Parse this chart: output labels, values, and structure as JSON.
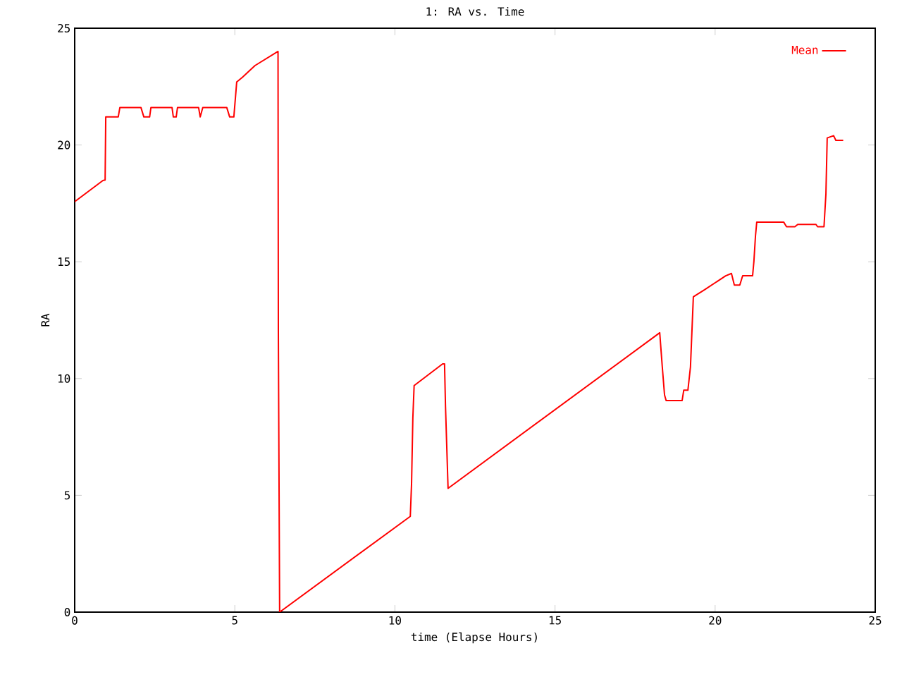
{
  "chart_data": {
    "type": "line",
    "title": "1: RA vs. Time",
    "xlabel": "time (Elapse Hours)",
    "ylabel": "RA",
    "xlim": [
      0,
      25
    ],
    "ylim": [
      0,
      25
    ],
    "xticks": [
      0,
      5,
      10,
      15,
      20,
      25
    ],
    "yticks": [
      0,
      5,
      10,
      15,
      20,
      25
    ],
    "grid": false,
    "legend": "top right",
    "marker": "none",
    "line_style": "solid",
    "series": [
      {
        "name": "Mean",
        "color": "#ff0000",
        "x": [
          0,
          0.88,
          0.95,
          0.97,
          1.36,
          1.41,
          2.07,
          2.16,
          2.34,
          2.38,
          3.04,
          3.08,
          3.17,
          3.21,
          3.87,
          3.92,
          4.0,
          4.75,
          4.84,
          4.97,
          5.06,
          5.24,
          5.63,
          6.34,
          6.35,
          6.36,
          6.4,
          10.48,
          10.52,
          10.56,
          10.6,
          11.49,
          11.55,
          11.58,
          11.66,
          18.27,
          18.35,
          18.42,
          18.47,
          18.97,
          19.02,
          19.15,
          19.23,
          19.32,
          19.67,
          20.33,
          20.51,
          20.6,
          20.77,
          20.86,
          21.17,
          21.21,
          21.26,
          21.3,
          22.14,
          22.23,
          22.49,
          22.58,
          23.15,
          23.2,
          23.4,
          23.46,
          23.5,
          23.7,
          23.77,
          24.0
        ],
        "values": [
          17.57,
          18.48,
          18.5,
          21.2,
          21.2,
          21.6,
          21.6,
          21.2,
          21.2,
          21.6,
          21.6,
          21.2,
          21.2,
          21.6,
          21.6,
          21.2,
          21.6,
          21.6,
          21.2,
          21.2,
          22.7,
          22.9,
          23.4,
          24.0,
          24.0,
          12.0,
          0,
          4.1,
          5.5,
          8.3,
          9.7,
          10.63,
          10.63,
          8.8,
          5.3,
          11.96,
          10.5,
          9.3,
          9.06,
          9.06,
          9.5,
          9.5,
          10.5,
          13.5,
          13.8,
          14.4,
          14.5,
          14.0,
          14.0,
          14.4,
          14.4,
          15.0,
          16.1,
          16.7,
          16.7,
          16.5,
          16.5,
          16.6,
          16.6,
          16.5,
          16.5,
          17.9,
          20.3,
          20.4,
          20.2,
          20.2
        ]
      }
    ]
  }
}
